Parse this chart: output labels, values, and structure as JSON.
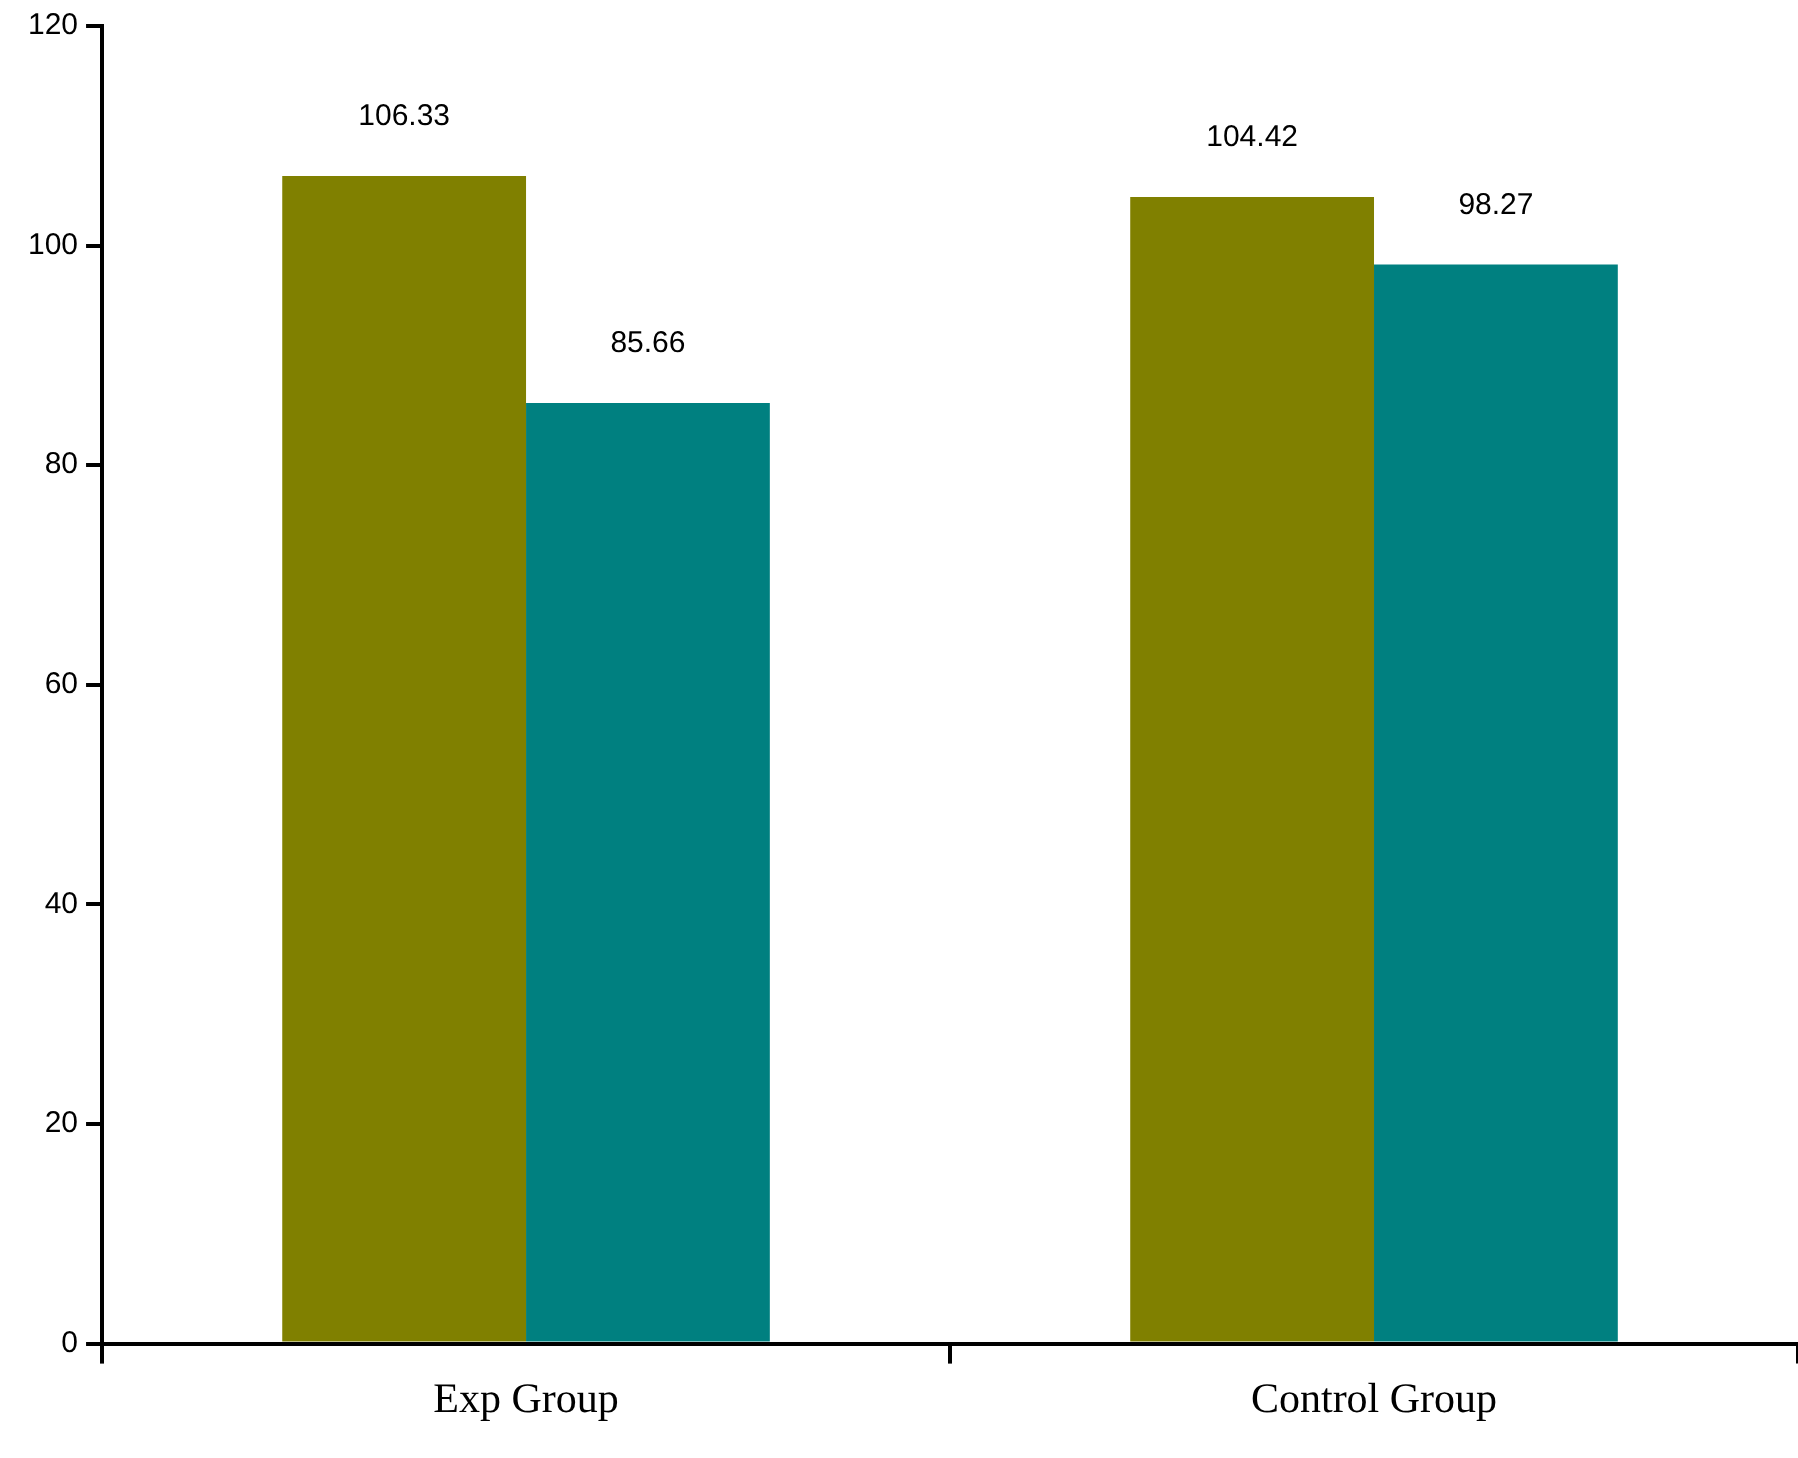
{
  "chart_data": {
    "type": "bar",
    "categories": [
      "Exp Group",
      "Control Group"
    ],
    "series": [
      {
        "color": "#808000",
        "values": [
          106.33,
          104.42
        ]
      },
      {
        "color": "#008080",
        "values": [
          85.66,
          98.27
        ]
      }
    ],
    "ylim": [
      0,
      120
    ],
    "yticks": [
      0,
      20,
      40,
      60,
      80,
      100,
      120
    ],
    "grid": false,
    "legend": false,
    "data_labels": true
  }
}
